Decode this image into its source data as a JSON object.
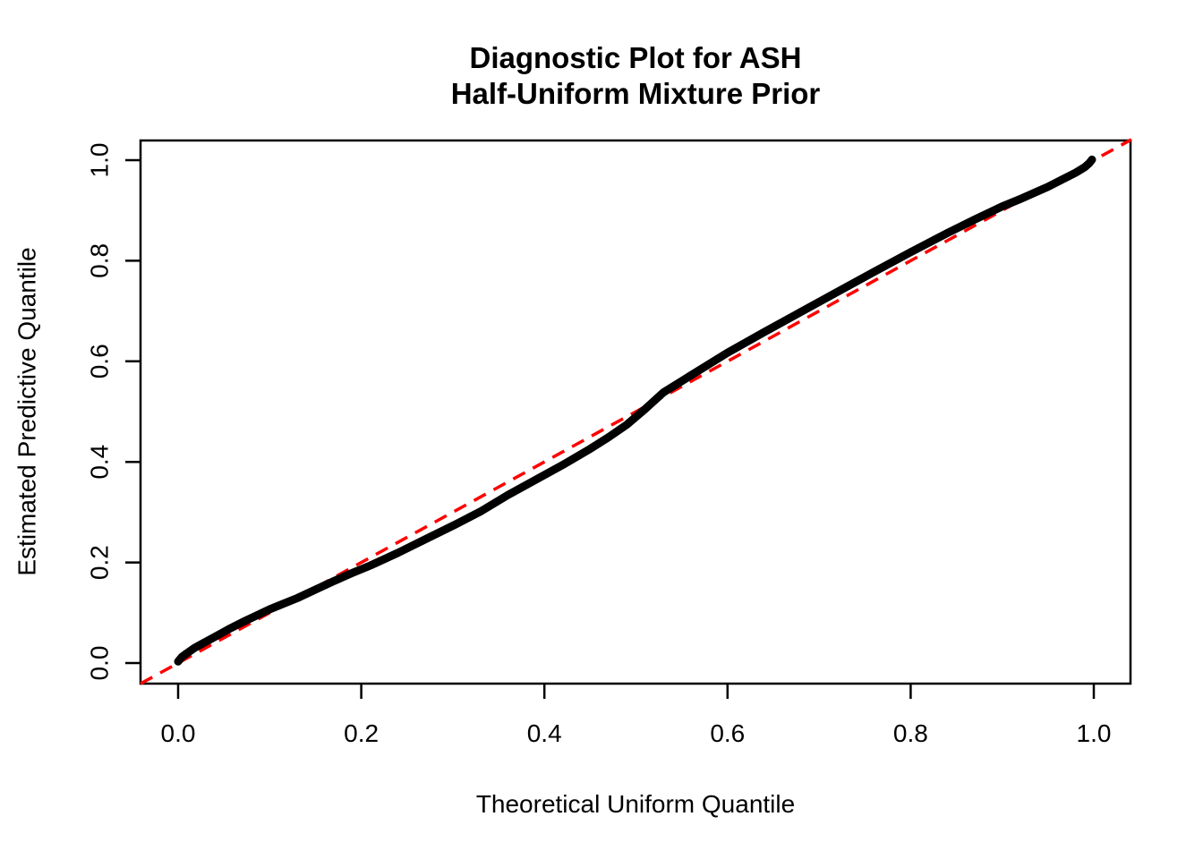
{
  "title": {
    "line1": "Diagnostic Plot for ASH",
    "line2": "Half-Uniform Mixture Prior"
  },
  "chart_data": {
    "type": "line",
    "title": "Diagnostic Plot for ASH\nHalf-Uniform Mixture Prior",
    "xlabel": "Theoretical Uniform Quantile",
    "ylabel": "Estimated Predictive Quantile",
    "xlim": [
      -0.041,
      1.041
    ],
    "ylim": [
      -0.041,
      1.041
    ],
    "x_ticks": [
      0.0,
      0.2,
      0.4,
      0.6,
      0.8,
      1.0
    ],
    "y_ticks": [
      0.0,
      0.2,
      0.4,
      0.6,
      0.8,
      1.0
    ],
    "x_tick_labels": [
      "0.0",
      "0.2",
      "0.4",
      "0.6",
      "0.8",
      "1.0"
    ],
    "y_tick_labels": [
      "0.0",
      "0.2",
      "0.4",
      "0.6",
      "0.8",
      "1.0"
    ],
    "grid": false,
    "legend": "none",
    "series": [
      {
        "name": "estimated-predictive-quantile-curve",
        "type": "line",
        "style": "solid",
        "color": "#000000",
        "x": [
          0.0,
          0.004,
          0.01,
          0.018,
          0.028,
          0.04,
          0.055,
          0.07,
          0.085,
          0.1,
          0.115,
          0.13,
          0.15,
          0.17,
          0.19,
          0.21,
          0.24,
          0.27,
          0.3,
          0.33,
          0.36,
          0.39,
          0.42,
          0.45,
          0.47,
          0.49,
          0.51,
          0.53,
          0.56,
          0.6,
          0.64,
          0.68,
          0.72,
          0.76,
          0.8,
          0.84,
          0.87,
          0.9,
          0.92,
          0.935,
          0.95,
          0.965,
          0.98,
          0.99,
          0.995,
          0.998
        ],
        "y": [
          0.003,
          0.012,
          0.02,
          0.03,
          0.04,
          0.052,
          0.067,
          0.081,
          0.094,
          0.107,
          0.118,
          0.129,
          0.146,
          0.163,
          0.179,
          0.194,
          0.219,
          0.246,
          0.273,
          0.301,
          0.334,
          0.364,
          0.394,
          0.426,
          0.449,
          0.474,
          0.505,
          0.538,
          0.572,
          0.617,
          0.658,
          0.698,
          0.738,
          0.778,
          0.817,
          0.855,
          0.882,
          0.908,
          0.923,
          0.935,
          0.947,
          0.961,
          0.975,
          0.986,
          0.994,
          1.001
        ]
      },
      {
        "name": "reference-line-y-equals-x",
        "type": "line",
        "style": "dashed",
        "color": "#FF0000",
        "x": [
          -0.041,
          1.041
        ],
        "y": [
          -0.041,
          1.041
        ]
      }
    ],
    "colors": {
      "curve": "#000000",
      "reference": "#FF0000",
      "axis": "#000000",
      "background": "#FFFFFF"
    }
  }
}
